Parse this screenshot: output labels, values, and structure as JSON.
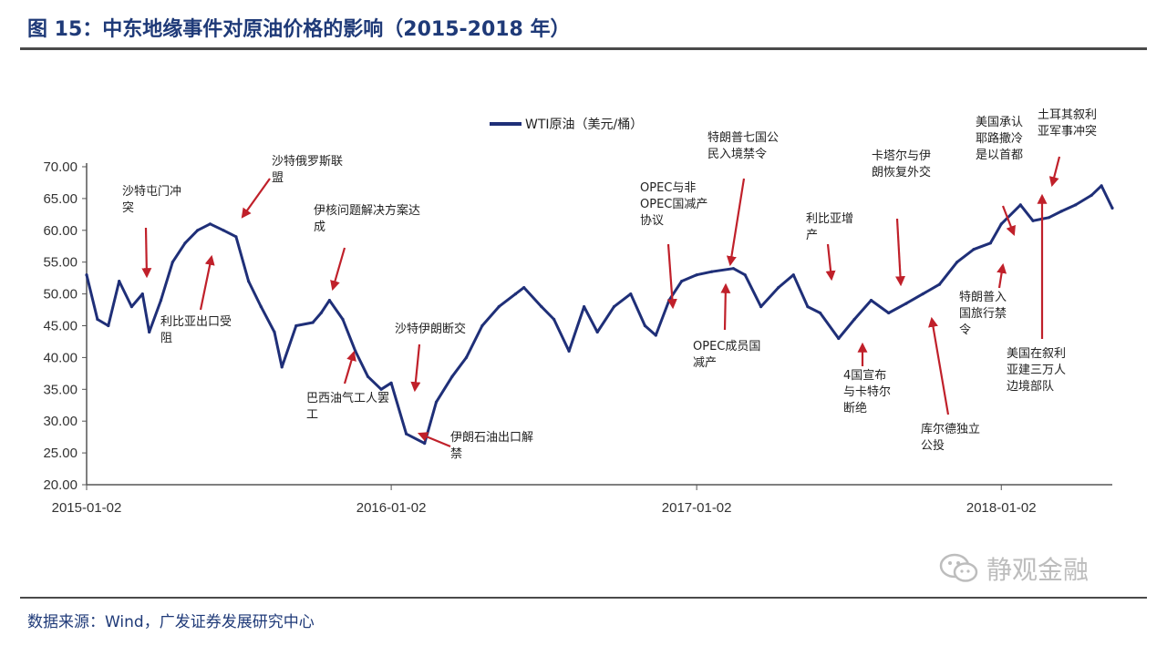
{
  "header": {
    "title": "图 15：中东地缘事件对原油价格的影响（2015-2018 年）"
  },
  "footer": {
    "source": "数据来源：Wind，广发证券发展研究中心"
  },
  "watermark": {
    "text": "静观金融",
    "icon": "wechat-icon"
  },
  "colors": {
    "series": "#1f2f78",
    "arrow": "#c0202a",
    "axis": "#555555"
  },
  "chart_data": {
    "type": "line",
    "title": "",
    "xlabel": "",
    "ylabel": "",
    "ylim": [
      20,
      70
    ],
    "yticks": [
      "70.00",
      "65.00",
      "60.00",
      "55.00",
      "50.00",
      "45.00",
      "40.00",
      "35.00",
      "30.00",
      "25.00",
      "20.00"
    ],
    "xticks": [
      "2015-01-02",
      "2016-01-02",
      "2017-01-02",
      "2018-01-02"
    ],
    "xlim": [
      "2015-01-02",
      "2018-05-15"
    ],
    "legend": {
      "position": "top-center"
    },
    "series": [
      {
        "name": "WTI原油（美元/桶）",
        "x": [
          "2015-01-02",
          "2015-01-15",
          "2015-01-28",
          "2015-02-10",
          "2015-02-25",
          "2015-03-10",
          "2015-03-18",
          "2015-04-01",
          "2015-04-15",
          "2015-04-30",
          "2015-05-15",
          "2015-05-30",
          "2015-06-15",
          "2015-06-30",
          "2015-07-15",
          "2015-07-30",
          "2015-08-15",
          "2015-08-24",
          "2015-09-10",
          "2015-09-30",
          "2015-10-10",
          "2015-10-20",
          "2015-11-05",
          "2015-11-20",
          "2015-12-05",
          "2015-12-21",
          "2016-01-02",
          "2016-01-20",
          "2016-02-11",
          "2016-02-25",
          "2016-03-15",
          "2016-04-01",
          "2016-04-20",
          "2016-05-10",
          "2016-05-30",
          "2016-06-09",
          "2016-06-30",
          "2016-07-15",
          "2016-08-02",
          "2016-08-20",
          "2016-09-05",
          "2016-09-25",
          "2016-10-15",
          "2016-11-01",
          "2016-11-14",
          "2016-11-30",
          "2016-12-15",
          "2017-01-02",
          "2017-01-20",
          "2017-02-15",
          "2017-03-01",
          "2017-03-20",
          "2017-04-10",
          "2017-04-28",
          "2017-05-15",
          "2017-05-30",
          "2017-06-21",
          "2017-07-10",
          "2017-07-30",
          "2017-08-20",
          "2017-09-10",
          "2017-09-30",
          "2017-10-20",
          "2017-11-10",
          "2017-11-30",
          "2017-12-20",
          "2018-01-02",
          "2018-01-25",
          "2018-02-09",
          "2018-02-28",
          "2018-03-15",
          "2018-04-01",
          "2018-04-20",
          "2018-05-02",
          "2018-05-15"
        ],
        "y": [
          53,
          46,
          45,
          52,
          48,
          50,
          44,
          49,
          55,
          58,
          60,
          61,
          60,
          59,
          52,
          48,
          44,
          38.5,
          45,
          45.5,
          47,
          49,
          46,
          41,
          37,
          35,
          36,
          28,
          26.5,
          33,
          37,
          40,
          45,
          48,
          50,
          51,
          48,
          46,
          41,
          48,
          44,
          48,
          50,
          45,
          43.5,
          49,
          52,
          53,
          53.5,
          54,
          53,
          48,
          51,
          53,
          48,
          47,
          43,
          46,
          49,
          47,
          48.5,
          50,
          51.5,
          55,
          57,
          58,
          61,
          64,
          61.5,
          62,
          63,
          64,
          65.5,
          67,
          63.5
        ]
      }
    ],
    "annotations": [
      {
        "text": "沙特屯门冲突",
        "x": "2015-03-18"
      },
      {
        "text": "利比亚出口受阻",
        "x": "2015-05-30"
      },
      {
        "text": "沙特俄罗斯联盟",
        "x": "2015-07-15"
      },
      {
        "text": "伊核问题解决方案达成",
        "x": "2015-10-20"
      },
      {
        "text": "巴西油气工人罢工",
        "x": "2015-11-20"
      },
      {
        "text": "沙特伊朗断交",
        "x": "2016-01-02"
      },
      {
        "text": "伊朗石油出口解禁",
        "x": "2016-01-20"
      },
      {
        "text": "OPEC与非OPEC国减产协议",
        "x": "2016-11-30"
      },
      {
        "text": "特朗普七国公民入境禁令",
        "x": "2017-01-25"
      },
      {
        "text": "OPEC成员国减产",
        "x": "2017-01-02"
      },
      {
        "text": "利比亚增产",
        "x": "2017-04-10"
      },
      {
        "text": "4国宣布与卡特尔断绝",
        "x": "2017-06-05"
      },
      {
        "text": "卡塔尔与伊朗恢复外交",
        "x": "2017-08-20"
      },
      {
        "text": "库尔德独立公投",
        "x": "2017-09-25"
      },
      {
        "text": "特朗普入国旅行禁令",
        "x": "2017-12-05"
      },
      {
        "text": "美国承认耶路撒冷是以首都",
        "x": "2017-12-06"
      },
      {
        "text": "土耳其叙利亚军事冲突",
        "x": "2018-01-25"
      },
      {
        "text": "美国在叙利亚建三万人边境部队",
        "x": "2018-01-15"
      }
    ]
  }
}
